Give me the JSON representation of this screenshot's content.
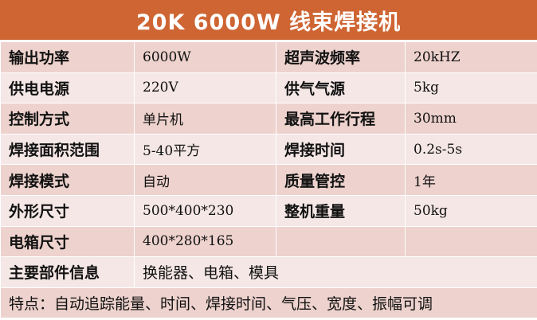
{
  "title": "20K 6000W 线束焊接机",
  "rows": [
    {
      "l1": "输出功率",
      "v1": "6000W",
      "l2": "超声波频率",
      "v2": "20kHZ"
    },
    {
      "l1": "供电电源",
      "v1": "220V",
      "l2": "供气气源",
      "v2": "5kg"
    },
    {
      "l1": "控制方式",
      "v1": "单片机",
      "l2": "最高工作行程",
      "v2": "30mm"
    },
    {
      "l1": "焊接面积范围",
      "v1": "5-40平方",
      "l2": "焊接时间",
      "v2": "0.2s-5s"
    },
    {
      "l1": "焊接模式",
      "v1": "自动",
      "l2": "质量管控",
      "v2": "1年"
    },
    {
      "l1": "外形尺寸",
      "v1": "500*400*230",
      "l2": "整机重量",
      "v2": "50kg"
    },
    {
      "l1": "电箱尺寸",
      "v1": "400*280*165",
      "l2": "",
      "v2": ""
    }
  ],
  "components": {
    "label": "主要部件信息",
    "value": "换能器、电箱、模具"
  },
  "features": "特点：自动追踪能量、时间、焊接时间、气压、宽度、振幅可调",
  "colors": {
    "title_bg": "#CE6533",
    "row_dark": "#EDD2CD",
    "row_light": "#F5E7E6"
  }
}
